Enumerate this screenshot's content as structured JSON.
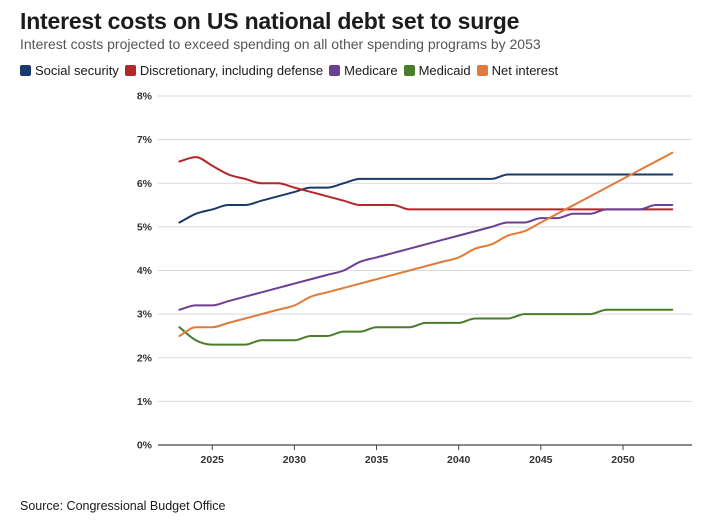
{
  "header": {
    "title": "Interest costs on US national debt set to surge",
    "subtitle": "Interest costs projected to exceed spending on all other spending programs by 2053"
  },
  "footer": {
    "source": "Source: Congressional Budget Office"
  },
  "chart_data": {
    "type": "line",
    "title": "Interest costs on US national debt set to surge",
    "subtitle": "Interest costs projected to exceed spending on all other spending programs by 2053",
    "xlabel": "",
    "ylabel": "",
    "xlim": [
      2021.7,
      2054.2
    ],
    "ylim": [
      0,
      8
    ],
    "x_ticks": [
      2025,
      2030,
      2035,
      2040,
      2045,
      2050
    ],
    "y_ticks": [
      0,
      1,
      2,
      3,
      4,
      5,
      6,
      7,
      8
    ],
    "y_tick_labels": [
      "0%",
      "1%",
      "2%",
      "3%",
      "4%",
      "5%",
      "6%",
      "7%",
      "8%"
    ],
    "grid": "horizontal",
    "legend_position": "top-left",
    "x": [
      2023,
      2024,
      2025,
      2026,
      2027,
      2028,
      2029,
      2030,
      2031,
      2032,
      2033,
      2034,
      2035,
      2036,
      2037,
      2038,
      2039,
      2040,
      2041,
      2042,
      2043,
      2044,
      2045,
      2046,
      2047,
      2048,
      2049,
      2050,
      2051,
      2052,
      2053
    ],
    "series": [
      {
        "name": "Social security",
        "color": "#1b3a6b",
        "values": [
          5.1,
          5.3,
          5.4,
          5.5,
          5.5,
          5.6,
          5.7,
          5.8,
          5.9,
          5.9,
          6.0,
          6.1,
          6.1,
          6.1,
          6.1,
          6.1,
          6.1,
          6.1,
          6.1,
          6.1,
          6.2,
          6.2,
          6.2,
          6.2,
          6.2,
          6.2,
          6.2,
          6.2,
          6.2,
          6.2,
          6.2
        ]
      },
      {
        "name": "Discretionary, including defense",
        "color": "#b5252a",
        "values": [
          6.5,
          6.6,
          6.4,
          6.2,
          6.1,
          6.0,
          6.0,
          5.9,
          5.8,
          5.7,
          5.6,
          5.5,
          5.5,
          5.5,
          5.4,
          5.4,
          5.4,
          5.4,
          5.4,
          5.4,
          5.4,
          5.4,
          5.4,
          5.4,
          5.4,
          5.4,
          5.4,
          5.4,
          5.4,
          5.4,
          5.4
        ]
      },
      {
        "name": "Medicare",
        "color": "#6b3f94",
        "values": [
          3.1,
          3.2,
          3.2,
          3.3,
          3.4,
          3.5,
          3.6,
          3.7,
          3.8,
          3.9,
          4.0,
          4.2,
          4.3,
          4.4,
          4.5,
          4.6,
          4.7,
          4.8,
          4.9,
          5.0,
          5.1,
          5.1,
          5.2,
          5.2,
          5.3,
          5.3,
          5.4,
          5.4,
          5.4,
          5.5,
          5.5
        ]
      },
      {
        "name": "Medicaid",
        "color": "#4a7c2a",
        "values": [
          2.7,
          2.4,
          2.3,
          2.3,
          2.3,
          2.4,
          2.4,
          2.4,
          2.5,
          2.5,
          2.6,
          2.6,
          2.7,
          2.7,
          2.7,
          2.8,
          2.8,
          2.8,
          2.9,
          2.9,
          2.9,
          3.0,
          3.0,
          3.0,
          3.0,
          3.0,
          3.1,
          3.1,
          3.1,
          3.1,
          3.1
        ]
      },
      {
        "name": "Net interest",
        "color": "#e07b39",
        "values": [
          2.5,
          2.7,
          2.7,
          2.8,
          2.9,
          3.0,
          3.1,
          3.2,
          3.4,
          3.5,
          3.6,
          3.7,
          3.8,
          3.9,
          4.0,
          4.1,
          4.2,
          4.3,
          4.5,
          4.6,
          4.8,
          4.9,
          5.1,
          5.3,
          5.5,
          5.7,
          5.9,
          6.1,
          6.3,
          6.5,
          6.7
        ]
      }
    ]
  }
}
